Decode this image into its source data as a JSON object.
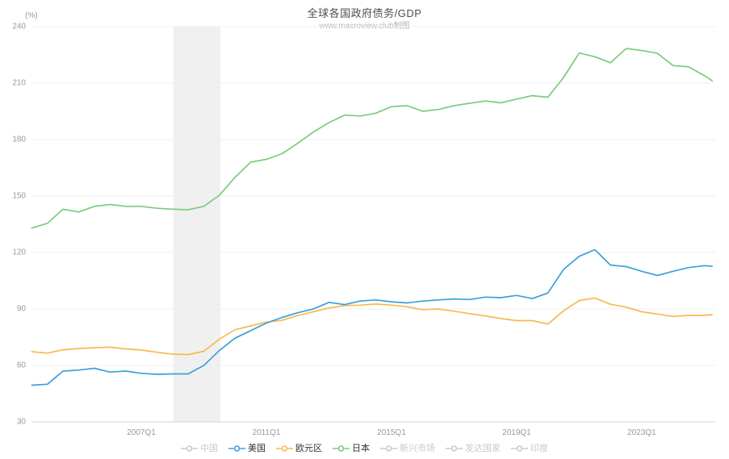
{
  "title": "全球各国政府债务/GDP",
  "subtitle": "www.macroview.club制图",
  "y_axis_unit": "(%)",
  "colors": {
    "us_blue": "#3BA0DB",
    "eurozone_orange": "#F8B94F",
    "japan_green": "#7DCB7D",
    "inactive_gray": "#c9c9c9",
    "active_label": "#333333",
    "grid": "#efefef",
    "axis_line": "#d4d4d4",
    "band": "#e4e4e4",
    "tick_text": "#999999"
  },
  "legend": [
    {
      "key": "china",
      "label": "中国",
      "active": false,
      "color": "#c9c9c9"
    },
    {
      "key": "us",
      "label": "美国",
      "active": true,
      "color": "#3BA0DB"
    },
    {
      "key": "eurozone",
      "label": "欧元区",
      "active": true,
      "color": "#F8B94F"
    },
    {
      "key": "japan",
      "label": "日本",
      "active": true,
      "color": "#7DCB7D"
    },
    {
      "key": "emerging-markets",
      "label": "新兴市场",
      "active": false,
      "color": "#c9c9c9"
    },
    {
      "key": "developed-countries",
      "label": "发达国家",
      "active": false,
      "color": "#c9c9c9"
    },
    {
      "key": "india",
      "label": "印度",
      "active": false,
      "color": "#c9c9c9"
    }
  ],
  "chart_data": {
    "type": "line",
    "title": "全球各国政府债务/GDP",
    "subtitle": "www.macroview.club制图",
    "xlabel": "",
    "ylabel": "(%)",
    "ylim": [
      30,
      240
    ],
    "yticks": [
      30,
      60,
      90,
      120,
      150,
      180,
      210,
      240
    ],
    "xlim": [
      2003.49,
      2025.35
    ],
    "xticks": [
      {
        "label": "2007Q1",
        "year": 2007
      },
      {
        "label": "2011Q1",
        "year": 2011
      },
      {
        "label": "2015Q1",
        "year": 2015
      },
      {
        "label": "2019Q1",
        "year": 2019
      },
      {
        "label": "2023Q1",
        "year": 2023
      }
    ],
    "grid": true,
    "legend_position": "bottom",
    "recession_band": {
      "from": 2008.03,
      "to": 2009.53
    },
    "x": [
      2003.5,
      2004,
      2004.5,
      2005,
      2005.5,
      2006,
      2006.5,
      2007,
      2007.5,
      2008,
      2008.5,
      2009,
      2009.5,
      2010,
      2010.5,
      2011,
      2011.5,
      2012,
      2012.5,
      2013,
      2013.5,
      2014,
      2014.5,
      2015,
      2015.5,
      2016,
      2016.5,
      2017,
      2017.5,
      2018,
      2018.5,
      2019,
      2019.5,
      2020,
      2020.5,
      2021,
      2021.5,
      2022,
      2022.5,
      2023,
      2023.5,
      2024,
      2024.5,
      2025,
      2025.25
    ],
    "series": [
      {
        "name": "欧元区",
        "key": "eurozone",
        "color": "#F8B94F",
        "values": [
          67.3,
          66.5,
          68.3,
          69,
          69.4,
          69.7,
          68.8,
          68.2,
          67,
          66,
          65.8,
          67.5,
          74,
          79,
          81,
          83,
          84,
          86.5,
          88.5,
          90.5,
          91.8,
          92,
          92.6,
          92,
          91.2,
          89.6,
          90,
          88.8,
          87.5,
          86.3,
          84.9,
          83.8,
          83.8,
          82,
          89,
          94.5,
          95.8,
          92.5,
          91,
          88.5,
          87.3,
          86,
          86.6,
          86.6,
          87
        ]
      },
      {
        "name": "日本",
        "key": "japan",
        "color": "#7DCB7D",
        "values": [
          133,
          135.5,
          143,
          141.5,
          144.5,
          145.5,
          144.5,
          144.5,
          143.5,
          143,
          142.7,
          144.5,
          150.5,
          160,
          168,
          169.5,
          172.5,
          178,
          184,
          189,
          193,
          192.5,
          194,
          197.5,
          198,
          195,
          196,
          198,
          199.3,
          200.5,
          199.5,
          201.5,
          203.3,
          202.5,
          213,
          226,
          224,
          220.8,
          228.4,
          227.3,
          225.8,
          219.3,
          218.6,
          214,
          211.3
        ]
      },
      {
        "name": "美国",
        "key": "us",
        "color": "#3BA0DB",
        "values": [
          49.5,
          50,
          57,
          57.5,
          58.5,
          56.5,
          57,
          55.8,
          55.3,
          55.5,
          55.5,
          60,
          68,
          74.5,
          78.5,
          82.5,
          85.5,
          88,
          90,
          93.5,
          92.3,
          94.2,
          94.8,
          93.8,
          93.2,
          94.2,
          94.8,
          95.3,
          95,
          96.3,
          96,
          97.2,
          95.5,
          98.5,
          111,
          118,
          121.5,
          113.3,
          112.5,
          110,
          107.8,
          110,
          112,
          113,
          112.7
        ]
      }
    ]
  }
}
